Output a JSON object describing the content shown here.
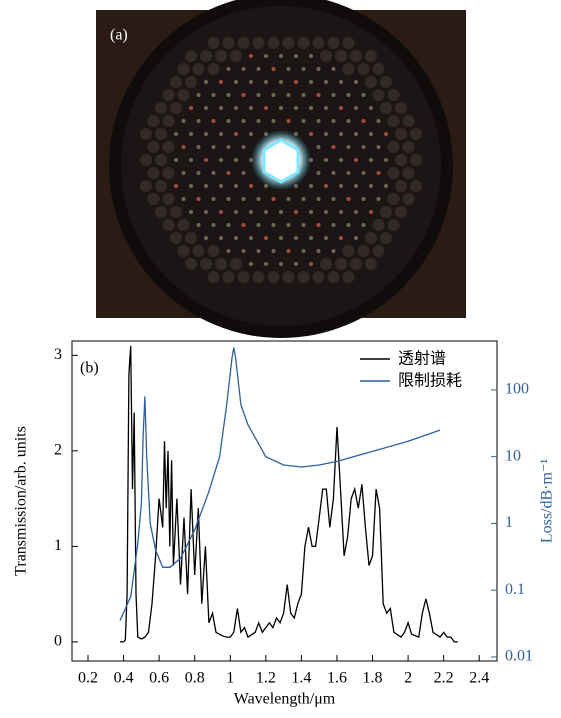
{
  "image_label": "(a)",
  "chart_data": {
    "type": "line",
    "panel_label": "(b)",
    "xlabel": "Wavelength/μm",
    "ylabel": "Transmission/arb. units",
    "y2label": "Loss/dB·m⁻¹",
    "xlim": [
      0.11,
      2.5
    ],
    "xticks": [
      0.2,
      0.4,
      0.6,
      0.8,
      1.0,
      1.2,
      1.4,
      1.6,
      1.8,
      2.0,
      2.2,
      2.4
    ],
    "ylim": [
      -0.2,
      3.15
    ],
    "yticks": [
      0,
      1,
      2,
      3
    ],
    "y2lim": [
      0.0087,
      540
    ],
    "y2ticks": [
      0.01,
      0.1,
      1,
      10,
      100
    ],
    "y2scale": "log",
    "legend": "upper right",
    "series": [
      {
        "name": "透射谱",
        "color": "#000000",
        "x": [
          0.38,
          0.4,
          0.41,
          0.42,
          0.43,
          0.44,
          0.45,
          0.46,
          0.47,
          0.48,
          0.5,
          0.52,
          0.54,
          0.56,
          0.58,
          0.6,
          0.62,
          0.63,
          0.64,
          0.65,
          0.66,
          0.67,
          0.68,
          0.7,
          0.72,
          0.74,
          0.76,
          0.78,
          0.8,
          0.82,
          0.84,
          0.86,
          0.88,
          0.9,
          0.92,
          0.94,
          0.96,
          0.98,
          1.0,
          1.02,
          1.04,
          1.06,
          1.08,
          1.1,
          1.14,
          1.16,
          1.18,
          1.22,
          1.24,
          1.26,
          1.28,
          1.3,
          1.32,
          1.34,
          1.36,
          1.38,
          1.4,
          1.42,
          1.44,
          1.46,
          1.48,
          1.5,
          1.52,
          1.54,
          1.56,
          1.58,
          1.6,
          1.62,
          1.64,
          1.66,
          1.68,
          1.7,
          1.72,
          1.74,
          1.76,
          1.78,
          1.8,
          1.82,
          1.84,
          1.86,
          1.88,
          1.9,
          1.92,
          1.96,
          1.98,
          2.0,
          2.02,
          2.06,
          2.08,
          2.1,
          2.12,
          2.14,
          2.18,
          2.2,
          2.22,
          2.24,
          2.26,
          2.28
        ],
        "values": [
          0,
          0,
          0.02,
          0.5,
          2.8,
          3.1,
          1.6,
          2.4,
          0.5,
          0.05,
          0.03,
          0.05,
          0.1,
          0.4,
          0.9,
          1.5,
          1.2,
          2.1,
          1.4,
          2.0,
          1.0,
          1.9,
          0.8,
          1.5,
          0.6,
          1.3,
          0.5,
          1.6,
          0.7,
          1.4,
          0.4,
          1.0,
          0.2,
          0.3,
          0.1,
          0.08,
          0.06,
          0.05,
          0.05,
          0.1,
          0.35,
          0.1,
          0.15,
          0.05,
          0.1,
          0.2,
          0.1,
          0.2,
          0.15,
          0.25,
          0.2,
          0.3,
          0.6,
          0.3,
          0.25,
          0.4,
          0.5,
          1.0,
          1.2,
          1.0,
          1.0,
          1.3,
          1.6,
          1.6,
          1.2,
          1.5,
          2.25,
          1.6,
          0.9,
          1.1,
          1.5,
          1.6,
          1.4,
          1.65,
          1.2,
          0.8,
          0.9,
          1.6,
          1.4,
          0.4,
          0.3,
          0.35,
          0.1,
          0.05,
          0.1,
          0.2,
          0.08,
          0.05,
          0.3,
          0.45,
          0.3,
          0.1,
          0.05,
          0.1,
          0.05,
          0.05,
          0,
          0
        ]
      },
      {
        "name": "限制损耗",
        "color": "#2f5f9e",
        "axis": "y2",
        "x": [
          0.38,
          0.44,
          0.48,
          0.5,
          0.51,
          0.52,
          0.53,
          0.55,
          0.58,
          0.62,
          0.66,
          0.72,
          0.8,
          0.88,
          0.94,
          0.98,
          1.01,
          1.02,
          1.03,
          1.06,
          1.1,
          1.2,
          1.3,
          1.4,
          1.5,
          1.6,
          1.8,
          2.0,
          2.18
        ],
        "values": [
          0.035,
          0.08,
          0.5,
          2,
          20,
          80,
          10,
          1.0,
          0.4,
          0.22,
          0.22,
          0.3,
          0.8,
          3,
          10,
          60,
          300,
          430,
          300,
          60,
          30,
          10,
          7.5,
          7,
          7.5,
          8.5,
          12,
          17,
          25
        ]
      }
    ]
  }
}
